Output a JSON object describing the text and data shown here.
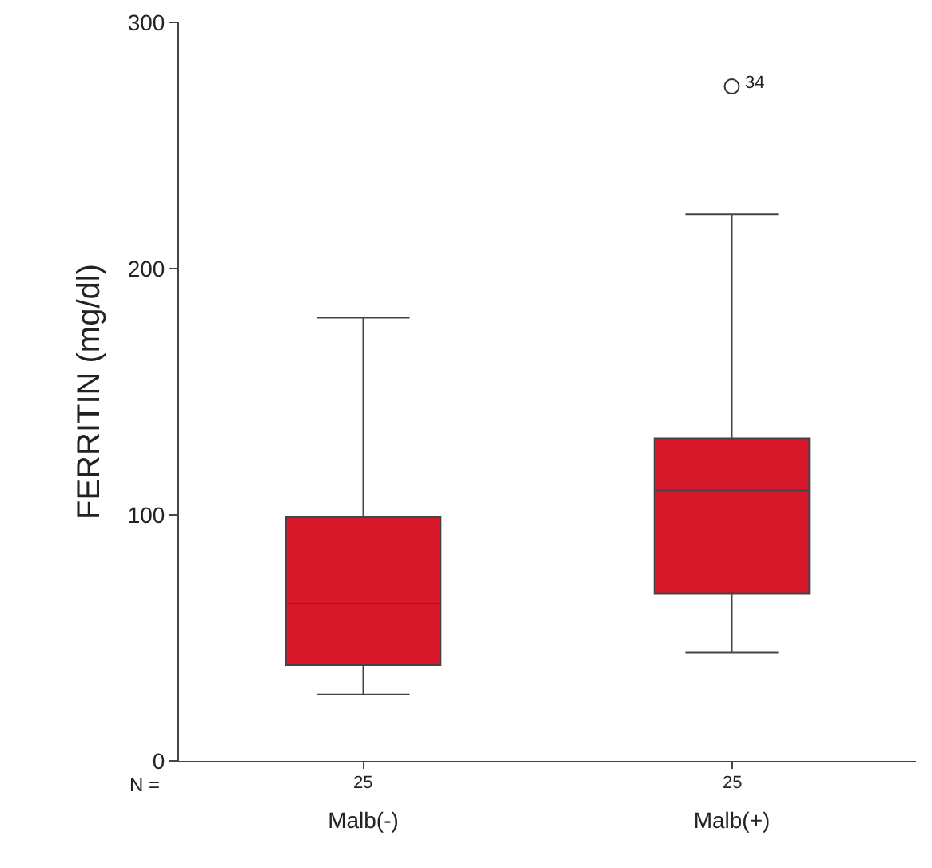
{
  "chart_data": {
    "type": "box",
    "ylabel": "FERRITIN (mg/dl)",
    "categories": [
      "Malb(-)",
      "Malb(+)"
    ],
    "boxes": [
      {
        "low": 27,
        "q1": 39,
        "median": 64,
        "q3": 99,
        "high": 180
      },
      {
        "low": 44,
        "q1": 68,
        "median": 110,
        "q3": 131,
        "high": 222,
        "outliers": [
          274
        ]
      }
    ],
    "color": "#d7182a",
    "ylim": [
      0,
      300
    ],
    "yticks": [
      0,
      100,
      200,
      300
    ],
    "grid": false,
    "annotations": [
      "N =",
      "25",
      "25",
      "34"
    ]
  }
}
